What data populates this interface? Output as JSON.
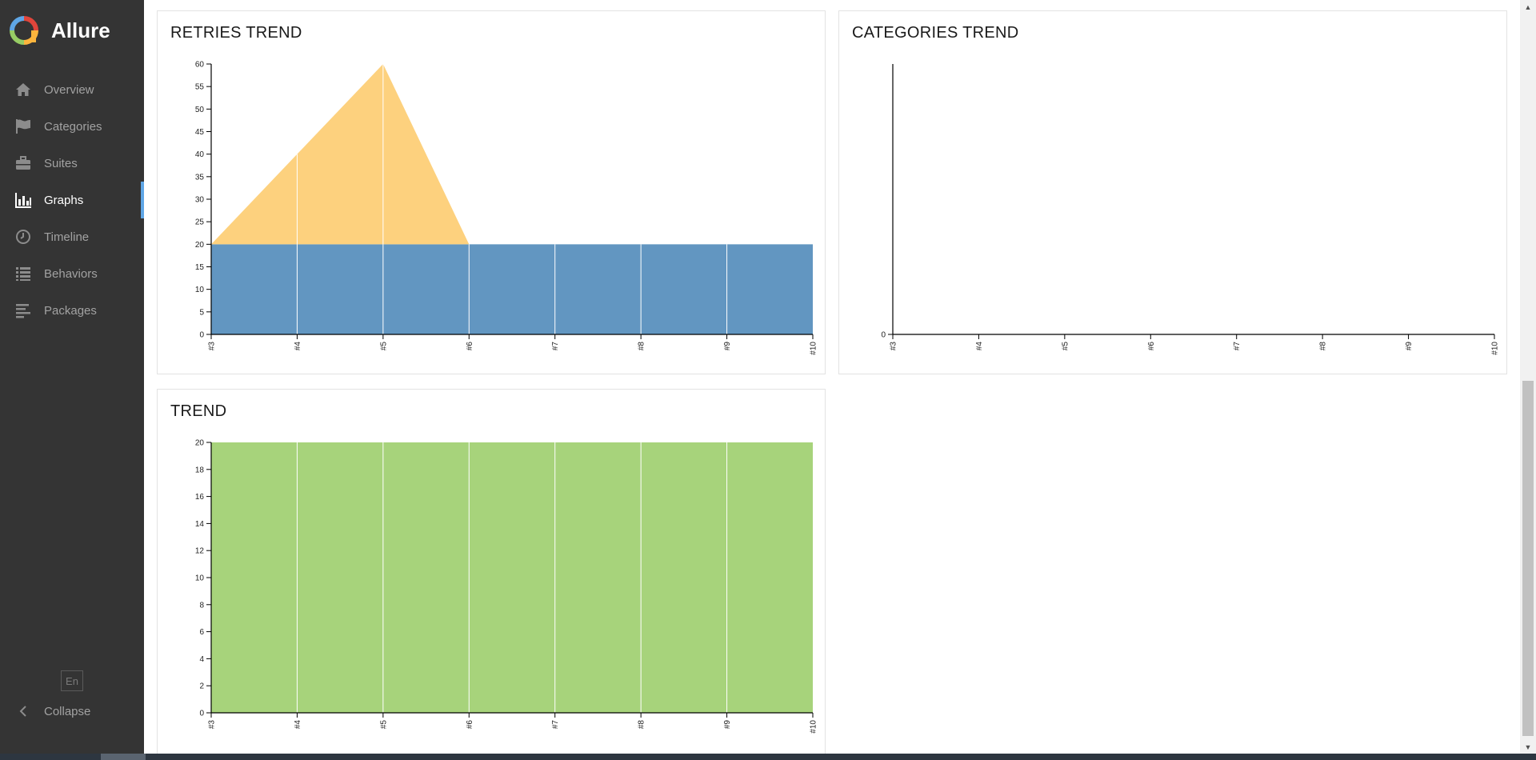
{
  "app": {
    "name": "Allure"
  },
  "sidebar": {
    "items": [
      {
        "id": "overview",
        "label": "Overview",
        "icon": "home-icon"
      },
      {
        "id": "categories",
        "label": "Categories",
        "icon": "flag-icon"
      },
      {
        "id": "suites",
        "label": "Suites",
        "icon": "briefcase-icon"
      },
      {
        "id": "graphs",
        "label": "Graphs",
        "icon": "bar-chart-icon",
        "active": true
      },
      {
        "id": "timeline",
        "label": "Timeline",
        "icon": "clock-icon"
      },
      {
        "id": "behaviors",
        "label": "Behaviors",
        "icon": "list-icon"
      },
      {
        "id": "packages",
        "label": "Packages",
        "icon": "align-left-icon"
      }
    ],
    "language": "En",
    "collapse_label": "Collapse"
  },
  "widgets": {
    "retries_title": "RETRIES TREND",
    "categories_title": "CATEGORIES TREND",
    "trend_title": "TREND"
  },
  "colors": {
    "sidebar_bg": "#343434",
    "active_accent": "#5fa6e6",
    "run": "#6296c1",
    "retries": "#fdd17e",
    "passed": "#a7d37b"
  },
  "chart_data": [
    {
      "type": "area",
      "title": "RETRIES TREND",
      "x": [
        "#3",
        "#4",
        "#5",
        "#6",
        "#7",
        "#8",
        "#9",
        "#10"
      ],
      "series": [
        {
          "values": [
            20,
            20,
            20,
            20,
            20,
            20,
            20,
            20
          ]
        },
        {
          "values": [
            0,
            20,
            40,
            0,
            0,
            0,
            0,
            0
          ]
        }
      ],
      "stacked": true,
      "ylim": [
        0,
        60
      ],
      "yticks": [
        0,
        5,
        10,
        15,
        20,
        25,
        30,
        35,
        40,
        45,
        50,
        55,
        60
      ]
    },
    {
      "type": "area",
      "title": "CATEGORIES TREND",
      "x": [
        "#3",
        "#4",
        "#5",
        "#6",
        "#7",
        "#8",
        "#9",
        "#10"
      ],
      "series": [],
      "yticks": [
        0
      ]
    },
    {
      "type": "area",
      "title": "TREND",
      "x": [
        "#3",
        "#4",
        "#5",
        "#6",
        "#7",
        "#8",
        "#9",
        "#10"
      ],
      "series": [
        {
          "values": [
            20,
            20,
            20,
            20,
            20,
            20,
            20,
            20
          ]
        }
      ],
      "ylim": [
        0,
        20
      ],
      "yticks": [
        0,
        2,
        4,
        6,
        8,
        10,
        12,
        14,
        16,
        18,
        20
      ]
    }
  ]
}
